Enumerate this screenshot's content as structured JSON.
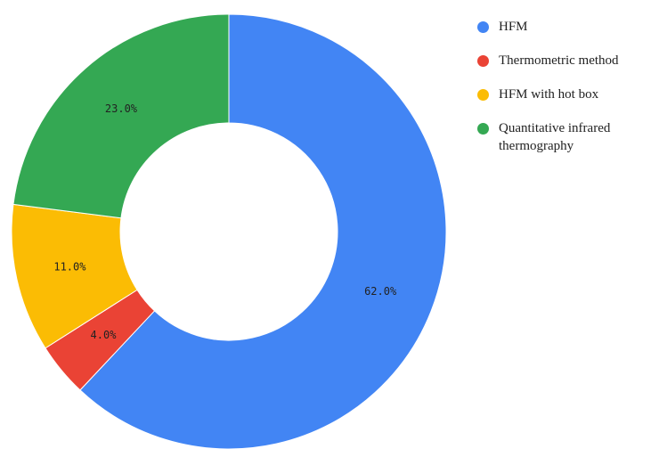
{
  "chart_data": {
    "type": "donut",
    "categories": [
      "HFM",
      "Thermometric method",
      "HFM with hot box",
      "Quantitative infrared thermography"
    ],
    "values": [
      62,
      4,
      11,
      23
    ],
    "value_labels": [
      "62.0%",
      "4.0%",
      "11.0%",
      "23.0%"
    ],
    "colors": [
      "#4285f4",
      "#ea4335",
      "#fbbc04",
      "#34a853"
    ],
    "legend": "right"
  }
}
